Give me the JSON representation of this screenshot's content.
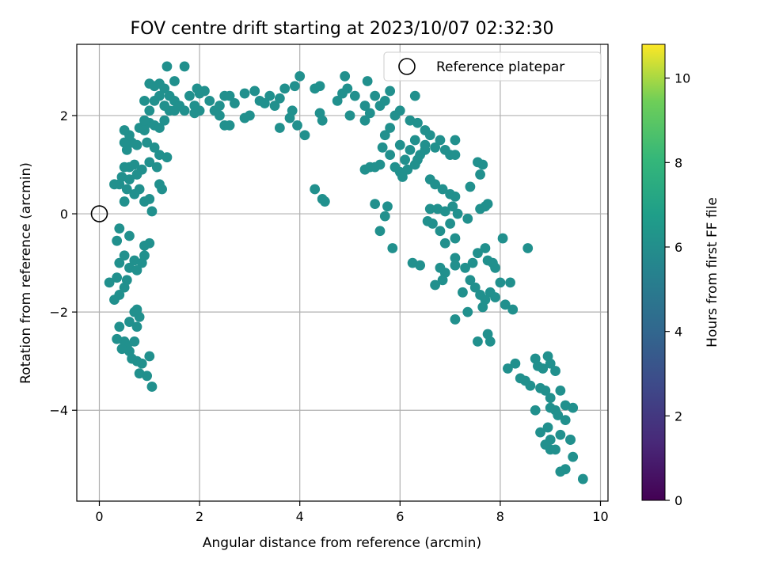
{
  "chart_data": {
    "type": "scatter",
    "title": "FOV centre drift starting at 2023/10/07 02:32:30",
    "xlabel": "Angular distance from reference (arcmin)",
    "ylabel": "Rotation from reference (arcmin)",
    "xlim": [
      -0.45,
      10.15
    ],
    "ylim": [
      -5.85,
      3.45
    ],
    "xticks": [
      "0",
      "2",
      "4",
      "6",
      "8",
      "10"
    ],
    "yticks": [
      "−4",
      "−2",
      "0",
      "2"
    ],
    "grid": true,
    "legend": {
      "placement": "top-right",
      "entries": [
        "Reference platepar"
      ]
    },
    "colorbar": {
      "label": "Hours from first FF file",
      "range": [
        0,
        10.8
      ],
      "ticks": [
        "0",
        "2",
        "4",
        "6",
        "8",
        "10"
      ],
      "colormap": "viridis"
    },
    "reference_point": {
      "x": 0,
      "y": 0
    },
    "series": [
      {
        "columns": [
          "x",
          "y",
          "hours"
        ],
        "points": [
          [
            1.05,
            -3.52
          ],
          [
            0.95,
            -3.3
          ],
          [
            1.0,
            -2.9
          ],
          [
            0.8,
            -3.25
          ],
          [
            0.85,
            -3.05
          ],
          [
            0.75,
            -3.0
          ],
          [
            0.65,
            -2.95
          ],
          [
            0.6,
            -2.8
          ],
          [
            0.55,
            -2.7
          ],
          [
            0.5,
            -2.6
          ],
          [
            0.45,
            -2.75
          ],
          [
            0.35,
            -2.55
          ],
          [
            0.4,
            -2.3
          ],
          [
            0.7,
            -2.6
          ],
          [
            0.75,
            -2.3
          ],
          [
            0.8,
            -2.1
          ],
          [
            0.7,
            -2.0
          ],
          [
            0.6,
            -2.2
          ],
          [
            0.75,
            -1.95
          ],
          [
            0.3,
            -1.75
          ],
          [
            0.4,
            -1.65
          ],
          [
            0.5,
            -1.5
          ],
          [
            0.2,
            -1.4
          ],
          [
            0.35,
            -1.3
          ],
          [
            0.55,
            -1.35
          ],
          [
            0.6,
            -1.1
          ],
          [
            0.4,
            -1.0
          ],
          [
            0.5,
            -0.85
          ],
          [
            0.7,
            -0.95
          ],
          [
            0.85,
            -1.0
          ],
          [
            0.75,
            -1.15
          ],
          [
            0.9,
            -0.85
          ],
          [
            1.0,
            -0.6
          ],
          [
            0.9,
            -0.65
          ],
          [
            0.6,
            -0.45
          ],
          [
            0.35,
            -0.55
          ],
          [
            0.4,
            -0.3
          ],
          [
            1.05,
            0.05
          ],
          [
            1.0,
            0.3
          ],
          [
            0.9,
            0.25
          ],
          [
            0.8,
            0.5
          ],
          [
            0.7,
            0.4
          ],
          [
            0.5,
            0.25
          ],
          [
            0.55,
            0.5
          ],
          [
            0.4,
            0.6
          ],
          [
            0.3,
            0.6
          ],
          [
            0.45,
            0.75
          ],
          [
            0.6,
            0.7
          ],
          [
            0.75,
            0.8
          ],
          [
            0.85,
            0.9
          ],
          [
            1.0,
            1.05
          ],
          [
            1.15,
            0.95
          ],
          [
            1.2,
            1.2
          ],
          [
            1.1,
            1.35
          ],
          [
            1.25,
            0.5
          ],
          [
            1.2,
            0.6
          ],
          [
            0.6,
            0.95
          ],
          [
            0.5,
            0.95
          ],
          [
            0.7,
            1.0
          ],
          [
            0.75,
            1.4
          ],
          [
            0.55,
            1.3
          ],
          [
            0.65,
            1.45
          ],
          [
            0.95,
            1.45
          ],
          [
            0.5,
            1.45
          ],
          [
            0.6,
            1.6
          ],
          [
            0.5,
            1.7
          ],
          [
            0.8,
            1.75
          ],
          [
            0.9,
            1.7
          ],
          [
            1.0,
            1.85
          ],
          [
            1.1,
            1.8
          ],
          [
            1.2,
            1.75
          ],
          [
            1.3,
            1.9
          ],
          [
            0.9,
            1.9
          ],
          [
            1.0,
            2.1
          ],
          [
            1.3,
            2.2
          ],
          [
            1.4,
            2.1
          ],
          [
            1.1,
            2.3
          ],
          [
            1.2,
            2.4
          ],
          [
            0.9,
            2.3
          ],
          [
            1.0,
            2.65
          ],
          [
            1.2,
            2.65
          ],
          [
            1.3,
            2.55
          ],
          [
            1.35,
            1.15
          ],
          [
            1.1,
            2.6
          ],
          [
            1.4,
            2.4
          ],
          [
            1.5,
            2.3
          ],
          [
            1.6,
            2.2
          ],
          [
            1.7,
            2.1
          ],
          [
            1.5,
            2.1
          ],
          [
            1.8,
            2.4
          ],
          [
            1.9,
            2.2
          ],
          [
            2.0,
            2.1
          ],
          [
            1.9,
            2.05
          ],
          [
            2.1,
            2.5
          ],
          [
            2.2,
            2.3
          ],
          [
            2.3,
            2.1
          ],
          [
            2.4,
            2.0
          ],
          [
            2.5,
            2.4
          ],
          [
            2.6,
            2.4
          ],
          [
            2.4,
            2.2
          ],
          [
            2.7,
            2.25
          ],
          [
            2.5,
            1.8
          ],
          [
            2.6,
            1.8
          ],
          [
            2.9,
            2.45
          ],
          [
            3.1,
            2.5
          ],
          [
            3.2,
            2.3
          ],
          [
            3.4,
            2.4
          ],
          [
            3.3,
            2.25
          ],
          [
            3.5,
            2.2
          ],
          [
            3.6,
            2.35
          ],
          [
            3.7,
            2.55
          ],
          [
            3.9,
            2.6
          ],
          [
            4.0,
            2.8
          ],
          [
            3.0,
            2.0
          ],
          [
            2.9,
            1.95
          ],
          [
            1.7,
            3.0
          ],
          [
            1.35,
            3.0
          ],
          [
            1.5,
            2.7
          ],
          [
            1.95,
            2.55
          ],
          [
            2.0,
            2.45
          ],
          [
            4.3,
            2.55
          ],
          [
            4.4,
            2.6
          ],
          [
            4.4,
            2.05
          ],
          [
            4.45,
            1.9
          ],
          [
            3.6,
            1.75
          ],
          [
            3.8,
            1.95
          ],
          [
            3.95,
            1.8
          ],
          [
            4.1,
            1.6
          ],
          [
            3.85,
            2.1
          ],
          [
            4.75,
            2.3
          ],
          [
            4.9,
            2.8
          ],
          [
            4.85,
            2.45
          ],
          [
            4.95,
            2.55
          ],
          [
            5.1,
            2.4
          ],
          [
            5.3,
            2.2
          ],
          [
            5.35,
            2.7
          ],
          [
            5.5,
            2.4
          ],
          [
            5.6,
            2.2
          ],
          [
            5.7,
            2.3
          ],
          [
            5.8,
            2.5
          ],
          [
            5.9,
            2.0
          ],
          [
            5.4,
            2.05
          ],
          [
            5.3,
            1.9
          ],
          [
            5.0,
            2.0
          ],
          [
            6.0,
            2.1
          ],
          [
            6.3,
            2.4
          ],
          [
            6.2,
            1.9
          ],
          [
            6.35,
            1.85
          ],
          [
            6.5,
            1.7
          ],
          [
            6.6,
            1.6
          ],
          [
            6.3,
            1.5
          ],
          [
            6.5,
            1.4
          ],
          [
            6.7,
            1.35
          ],
          [
            6.8,
            1.5
          ],
          [
            6.9,
            1.3
          ],
          [
            7.0,
            1.2
          ],
          [
            7.1,
            1.2
          ],
          [
            7.1,
            1.5
          ],
          [
            6.4,
            1.2
          ],
          [
            6.5,
            1.3
          ],
          [
            6.2,
            1.3
          ],
          [
            6.0,
            1.4
          ],
          [
            6.1,
            1.1
          ],
          [
            6.15,
            0.9
          ],
          [
            6.3,
            1.0
          ],
          [
            6.35,
            1.1
          ],
          [
            5.8,
            1.2
          ],
          [
            5.65,
            1.35
          ],
          [
            5.7,
            1.6
          ],
          [
            5.8,
            1.75
          ],
          [
            6.0,
            0.85
          ],
          [
            6.05,
            0.75
          ],
          [
            5.6,
            1.0
          ],
          [
            5.4,
            0.95
          ],
          [
            5.3,
            0.9
          ],
          [
            5.5,
            0.95
          ],
          [
            5.9,
            0.95
          ],
          [
            6.6,
            0.7
          ],
          [
            6.7,
            0.6
          ],
          [
            6.85,
            0.5
          ],
          [
            7.0,
            0.4
          ],
          [
            7.1,
            0.35
          ],
          [
            7.4,
            0.55
          ],
          [
            7.6,
            0.8
          ],
          [
            7.65,
            1.0
          ],
          [
            7.55,
            1.05
          ],
          [
            6.6,
            0.1
          ],
          [
            6.75,
            0.1
          ],
          [
            6.9,
            0.05
          ],
          [
            7.05,
            0.15
          ],
          [
            7.15,
            0.0
          ],
          [
            7.35,
            -0.1
          ],
          [
            7.6,
            0.1
          ],
          [
            7.7,
            0.15
          ],
          [
            7.75,
            0.2
          ],
          [
            7.0,
            -0.2
          ],
          [
            6.65,
            -0.2
          ],
          [
            6.8,
            -0.35
          ],
          [
            7.1,
            -0.5
          ],
          [
            6.9,
            -0.6
          ],
          [
            6.8,
            -1.1
          ],
          [
            6.9,
            -1.2
          ],
          [
            7.1,
            -0.9
          ],
          [
            7.1,
            -1.05
          ],
          [
            7.3,
            -1.1
          ],
          [
            7.45,
            -1.0
          ],
          [
            7.55,
            -0.8
          ],
          [
            7.7,
            -0.7
          ],
          [
            7.75,
            -0.95
          ],
          [
            7.85,
            -1.0
          ],
          [
            7.9,
            -1.1
          ],
          [
            8.0,
            -1.4
          ],
          [
            8.2,
            -1.4
          ],
          [
            8.1,
            -1.85
          ],
          [
            7.8,
            -1.6
          ],
          [
            7.9,
            -1.7
          ],
          [
            7.4,
            -1.35
          ],
          [
            7.5,
            -1.5
          ],
          [
            7.6,
            -1.65
          ],
          [
            7.7,
            -1.75
          ],
          [
            7.25,
            -1.6
          ],
          [
            7.1,
            -2.15
          ],
          [
            7.35,
            -2.0
          ],
          [
            7.55,
            -2.6
          ],
          [
            7.75,
            -2.45
          ],
          [
            7.8,
            -2.6
          ],
          [
            7.65,
            -1.9
          ],
          [
            8.25,
            -1.95
          ],
          [
            5.6,
            -0.35
          ],
          [
            5.7,
            -0.05
          ],
          [
            5.75,
            0.15
          ],
          [
            5.5,
            0.2
          ],
          [
            5.85,
            -0.7
          ],
          [
            6.25,
            -1.0
          ],
          [
            6.4,
            -1.05
          ],
          [
            6.85,
            -1.35
          ],
          [
            6.7,
            -1.45
          ],
          [
            6.55,
            -0.15
          ],
          [
            4.3,
            0.5
          ],
          [
            4.45,
            0.3
          ],
          [
            4.5,
            0.25
          ],
          [
            8.05,
            -0.5
          ],
          [
            8.55,
            -0.7
          ],
          [
            8.3,
            -3.05
          ],
          [
            8.15,
            -3.15
          ],
          [
            8.4,
            -3.35
          ],
          [
            8.5,
            -3.4
          ],
          [
            8.6,
            -3.5
          ],
          [
            8.7,
            -2.95
          ],
          [
            8.75,
            -3.1
          ],
          [
            8.85,
            -3.15
          ],
          [
            8.95,
            -2.9
          ],
          [
            9.0,
            -3.05
          ],
          [
            9.1,
            -3.2
          ],
          [
            8.8,
            -3.55
          ],
          [
            8.9,
            -3.6
          ],
          [
            9.0,
            -3.75
          ],
          [
            9.2,
            -3.6
          ],
          [
            9.3,
            -3.9
          ],
          [
            9.45,
            -3.95
          ],
          [
            8.7,
            -4.0
          ],
          [
            9.0,
            -3.95
          ],
          [
            9.1,
            -4.0
          ],
          [
            9.15,
            -4.1
          ],
          [
            9.3,
            -4.2
          ],
          [
            8.95,
            -4.35
          ],
          [
            8.8,
            -4.45
          ],
          [
            9.0,
            -4.6
          ],
          [
            9.2,
            -4.5
          ],
          [
            9.4,
            -4.6
          ],
          [
            8.9,
            -4.7
          ],
          [
            9.0,
            -4.8
          ],
          [
            9.1,
            -4.8
          ],
          [
            9.45,
            -4.95
          ],
          [
            9.3,
            -5.2
          ],
          [
            9.2,
            -5.25
          ],
          [
            9.65,
            -5.4
          ],
          [
            9.4,
            -4.6
          ]
        ]
      }
    ]
  }
}
